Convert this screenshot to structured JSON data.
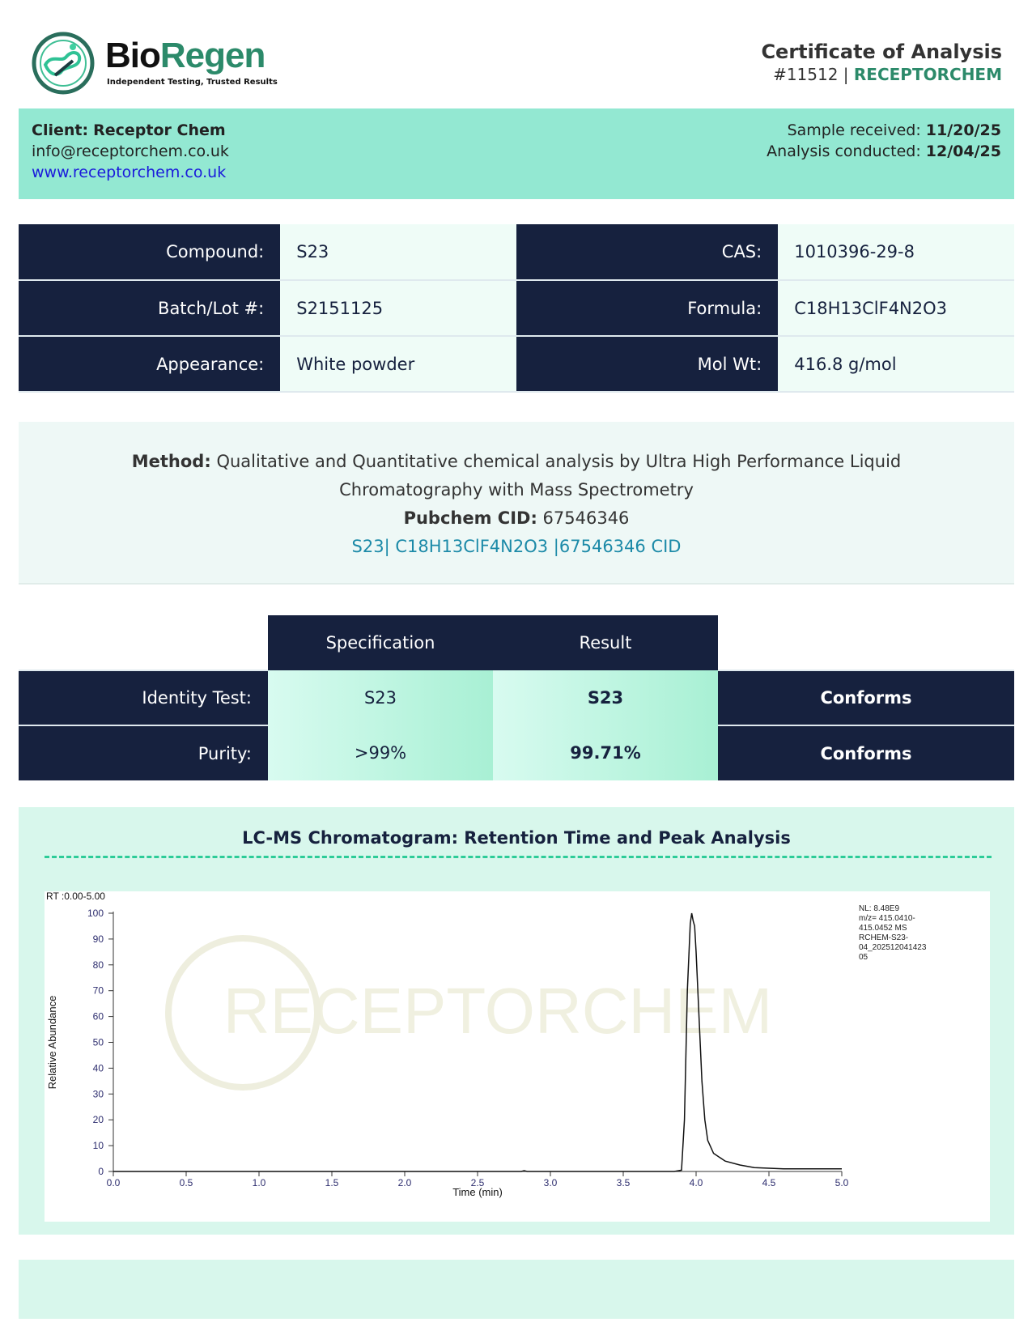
{
  "header": {
    "brand_part1": "Bio",
    "brand_part2": "Regen",
    "tagline": "Independent Testing, Trusted Results",
    "title": "Certificate of Analysis",
    "number": "#11512",
    "separator": " | ",
    "client_code": "RECEPTORCHEM"
  },
  "client": {
    "label": "Client:",
    "name": "Receptor Chem",
    "email": "info@receptorchem.co.uk",
    "website": "www.receptorchem.co.uk",
    "received_label": "Sample received:",
    "received": "11/20/25",
    "conducted_label": "Analysis conducted:",
    "conducted": "12/04/25"
  },
  "info": [
    {
      "l1": "Compound:",
      "v1": "S23",
      "l2": "CAS:",
      "v2": "1010396-29-8"
    },
    {
      "l1": "Batch/Lot #:",
      "v1": "S2151125",
      "l2": "Formula:",
      "v2": "C18H13ClF4N2O3"
    },
    {
      "l1": "Appearance:",
      "v1": "White powder",
      "l2": "Mol Wt:",
      "v2": "416.8 g/mol"
    }
  ],
  "method": {
    "label": "Method:",
    "text1": "Qualitative and Quantitative chemical analysis by Ultra High Performance Liquid",
    "text2": "Chromatography with Mass Spectrometry",
    "pubchem_label": "Pubchem CID:",
    "pubchem": "67546346",
    "link": "S23| C18H13ClF4N2O3 |67546346 CID"
  },
  "results": {
    "headers": [
      "Specification",
      "Result"
    ],
    "rows": [
      {
        "label": "Identity Test:",
        "spec": "S23",
        "result": "S23",
        "status": "Conforms"
      },
      {
        "label": "Purity:",
        "spec": ">99%",
        "result": "99.71%",
        "status": "Conforms"
      }
    ]
  },
  "chromatogram": {
    "title": "LC-MS Chromatogram: Retention Time and Peak Analysis",
    "watermark": "RECEPTORCHEM"
  },
  "chart_data": {
    "type": "line",
    "range_label": "RT :0.00-5.00",
    "xlabel": "Time (min)",
    "ylabel": "Relative Abundance",
    "xlim": [
      0,
      5
    ],
    "ylim": [
      0,
      100
    ],
    "xticks": [
      "0.0",
      "0.5",
      "1.0",
      "1.5",
      "2.0",
      "2.5",
      "3.0",
      "3.5",
      "4.0",
      "4.5",
      "5.0"
    ],
    "yticks": [
      "0",
      "10",
      "20",
      "30",
      "40",
      "50",
      "60",
      "70",
      "80",
      "90",
      "100"
    ],
    "annotation": [
      "NL: 8.48E9",
      "m/z= 415.0410-",
      "415.0452 MS",
      "RCHEM-S23-",
      "04_202512041423",
      "05"
    ],
    "series": [
      {
        "name": "S23",
        "points": [
          [
            0,
            0
          ],
          [
            2.8,
            0
          ],
          [
            2.82,
            0.3
          ],
          [
            2.84,
            0
          ],
          [
            3.85,
            0
          ],
          [
            3.9,
            0.5
          ],
          [
            3.92,
            20
          ],
          [
            3.94,
            70
          ],
          [
            3.96,
            96
          ],
          [
            3.97,
            100
          ],
          [
            3.98,
            97
          ],
          [
            3.99,
            95
          ],
          [
            4.0,
            85
          ],
          [
            4.02,
            60
          ],
          [
            4.04,
            35
          ],
          [
            4.06,
            20
          ],
          [
            4.08,
            12
          ],
          [
            4.12,
            7
          ],
          [
            4.2,
            4
          ],
          [
            4.3,
            2.5
          ],
          [
            4.4,
            1.5
          ],
          [
            4.6,
            1
          ],
          [
            5.0,
            1
          ]
        ]
      }
    ]
  }
}
